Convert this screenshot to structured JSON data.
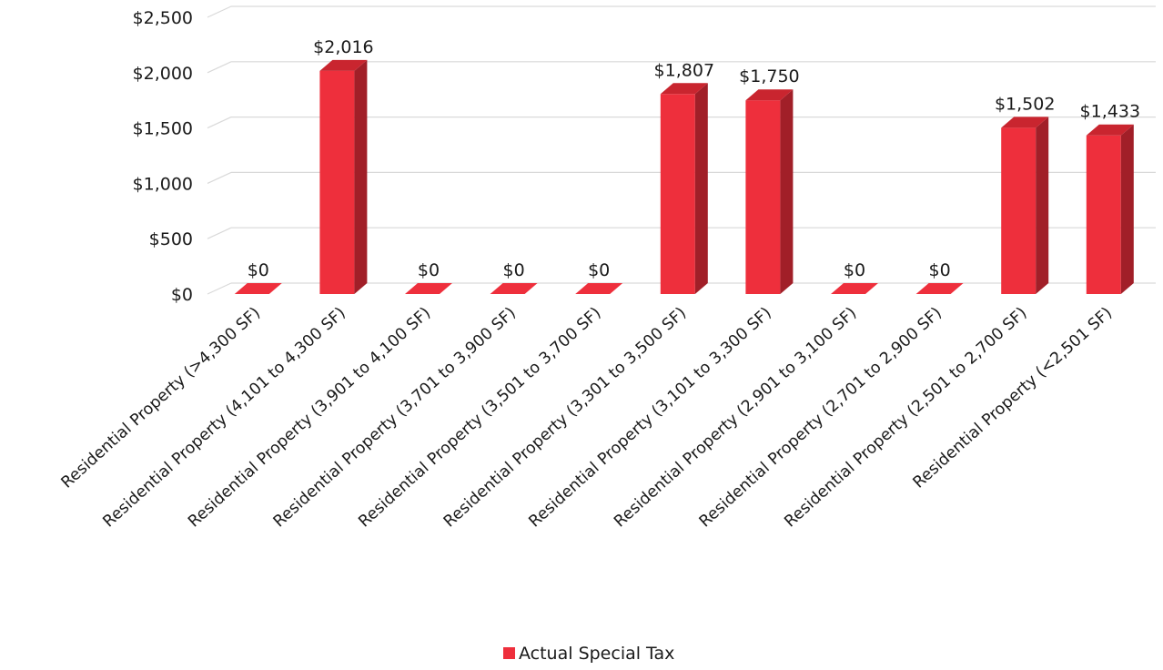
{
  "colors": {
    "bar_front": "#ee2f3c",
    "bar_side": "#a11f28",
    "bar_top": "#c9252f",
    "grid": "#d9d9d9",
    "legend_swatch": "#ee2f3c"
  },
  "chart_data": {
    "type": "bar",
    "style": "3d",
    "categories": [
      "Residential Property (>4,300 SF)",
      "Residential Property (4,101 to 4,300 SF)",
      "Residential Property (3,901 to 4,100 SF)",
      "Residential Property (3,701 to 3,900 SF)",
      "Residential Property (3,501 to 3,700 SF)",
      "Residential Property (3,301 to 3,500 SF)",
      "Residential Property (3,101 to 3,300 SF)",
      "Residential Property (2,901 to 3,100 SF)",
      "Residential Property (2,701 to 2,900 SF)",
      "Residential Property (2,501 to 2,700 SF)",
      "Residential Property (<2,501 SF)"
    ],
    "series": [
      {
        "name": "Actual Special Tax",
        "values": [
          0,
          2016,
          0,
          0,
          0,
          1807,
          1750,
          0,
          0,
          1502,
          1433
        ],
        "data_labels": [
          "$0",
          "$2,016",
          "$0",
          "$0",
          "$0",
          "$1,807",
          "$1,750",
          "$0",
          "$0",
          "$1,502",
          "$1,433"
        ]
      }
    ],
    "yticks": [
      0,
      500,
      1000,
      1500,
      2000,
      2500
    ],
    "ytick_labels": [
      "$0",
      "$500",
      "$1,000",
      "$1,500",
      "$2,000",
      "$2,500"
    ],
    "ylim": [
      0,
      2500
    ],
    "title": "",
    "xlabel": "",
    "ylabel": "",
    "grid": true,
    "legend": "bottom-center"
  }
}
